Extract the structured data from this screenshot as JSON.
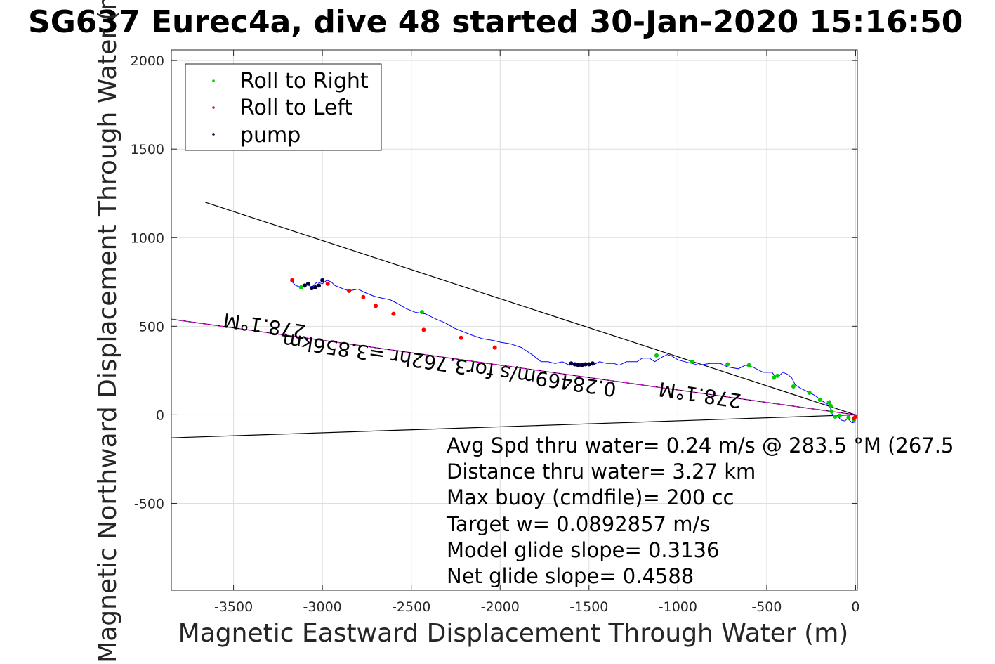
{
  "title": "SG637 Eurec4a, dive 48 started 30-Jan-2020 15:16:50",
  "chart_data": {
    "type": "line",
    "xlabel": "Magnetic Eastward Displacement Through Water (m)",
    "ylabel": "Magnetic Northward Displacement Through Water (m)",
    "xlim": [
      -3850,
      10
    ],
    "ylim": [
      -990,
      2060
    ],
    "xticks": [
      -3500,
      -3000,
      -2500,
      -2000,
      -1500,
      -1000,
      -500,
      0
    ],
    "yticks": [
      -500,
      0,
      500,
      1000,
      1500,
      2000
    ],
    "grid": true,
    "colors": {
      "track": "#0000ff",
      "roll_right": "#00cc00",
      "roll_left": "#ff0000",
      "pump": "#00003f",
      "ref": "#000000",
      "avg": "#ff00ff"
    },
    "legend": {
      "placement": "top-left",
      "entries": [
        {
          "label": "Roll to Right",
          "color": "#00cc00"
        },
        {
          "label": "Roll to Left",
          "color": "#ff0000"
        },
        {
          "label": "pump",
          "color": "#00003f"
        }
      ]
    },
    "track": {
      "x": [
        0,
        -20,
        -45,
        -60,
        -80,
        -100,
        -115,
        -130,
        -140,
        -145,
        -160,
        -190,
        -230,
        -270,
        -310,
        -340,
        -360,
        -385,
        -410,
        -440,
        -455,
        -470,
        -520,
        -580,
        -620,
        -660,
        -720,
        -760,
        -820,
        -880,
        -920,
        -960,
        -1000,
        -1030,
        -1060,
        -1100,
        -1130,
        -1160,
        -1200,
        -1230,
        -1260,
        -1290,
        -1330,
        -1360,
        -1400,
        -1440,
        -1480,
        -1530,
        -1570,
        -1610,
        -1650,
        -1690,
        -1730,
        -1770,
        -1820,
        -1880,
        -1940,
        -2000,
        -2040,
        -2100,
        -2160,
        -2210,
        -2260,
        -2310,
        -2360,
        -2420,
        -2480,
        -2530,
        -2580,
        -2620,
        -2670,
        -2710,
        -2760,
        -2800,
        -2850,
        -2880,
        -2930,
        -2950,
        -2975,
        -3000,
        -3030,
        -3060,
        -3090,
        -3120,
        -3150,
        -3180
      ],
      "y": [
        -40,
        -45,
        -20,
        -35,
        -30,
        -10,
        -15,
        0,
        30,
        80,
        60,
        80,
        110,
        130,
        150,
        170,
        210,
        230,
        240,
        210,
        220,
        240,
        240,
        270,
        280,
        260,
        270,
        290,
        290,
        280,
        290,
        300,
        310,
        330,
        340,
        320,
        300,
        320,
        320,
        300,
        300,
        300,
        280,
        290,
        290,
        300,
        280,
        290,
        290,
        280,
        300,
        290,
        300,
        300,
        340,
        380,
        400,
        410,
        420,
        430,
        450,
        470,
        490,
        520,
        540,
        570,
        580,
        600,
        630,
        650,
        660,
        670,
        690,
        710,
        700,
        710,
        730,
        750,
        760,
        740,
        750,
        720,
        740,
        720,
        730,
        760
      ]
    },
    "roll_right": {
      "x": [
        -10,
        -40,
        -90,
        -115,
        -135,
        -140,
        -150,
        -200,
        -260,
        -350,
        -440,
        -460,
        -600,
        -720,
        -920,
        -1120,
        -2440,
        -3120
      ],
      "y": [
        -30,
        -15,
        -5,
        -10,
        20,
        50,
        70,
        85,
        125,
        160,
        220,
        210,
        280,
        285,
        300,
        335,
        580,
        720
      ]
    },
    "roll_left": {
      "x": [
        0,
        -10,
        -2030,
        -2220,
        -2430,
        -2600,
        -2700,
        -2770,
        -2850,
        -2970,
        -3170
      ],
      "y": [
        -10,
        -20,
        380,
        435,
        480,
        570,
        615,
        665,
        700,
        740,
        760
      ]
    },
    "pump": {
      "x": [
        -3100,
        -3080,
        -3060,
        -3040,
        -3020,
        -3000,
        -1600,
        -1580,
        -1560,
        -1540,
        -1520,
        -1500,
        -1480
      ],
      "y": [
        730,
        740,
        715,
        720,
        730,
        760,
        290,
        285,
        280,
        280,
        285,
        285,
        290
      ]
    },
    "ref_lines": [
      {
        "x": [
          0,
          -3660
        ],
        "y": [
          0,
          1200
        ]
      },
      {
        "x": [
          0,
          -3850
        ],
        "y": [
          0,
          540
        ]
      },
      {
        "x": [
          0,
          -3850
        ],
        "y": [
          0,
          -130
        ]
      }
    ],
    "avg_line": {
      "x": [
        0,
        -3850
      ],
      "y": [
        0,
        540
      ]
    },
    "annotations": [
      {
        "text": "278.1°M",
        "x": -3320,
        "y": 540,
        "rotate": 188.5
      },
      {
        "text": "0.28469m/s for3.762hr =3.856km",
        "x": -2280,
        "y": 320,
        "rotate": 188.5
      },
      {
        "text": "278.1°M",
        "x": -870,
        "y": 150,
        "rotate": 188.5
      }
    ],
    "textbox": [
      "Avg Spd thru water=  0.24 m/s @ 283.5 °M (267.5",
      "Distance thru water=  3.27 km",
      "Max buoy (cmdfile)= 200 cc",
      "Target w= 0.0892857 m/s",
      "Model glide slope= 0.3136",
      "Net glide slope= 0.4588"
    ]
  }
}
